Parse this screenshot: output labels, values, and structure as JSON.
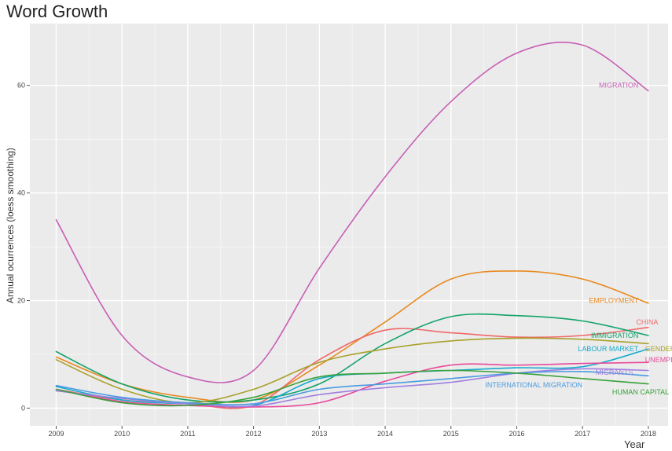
{
  "chart_data": {
    "type": "line",
    "title": "Word Growth",
    "xlabel": "Year",
    "ylabel": "Annual ocurrences (loess smoothing)",
    "x": [
      2009,
      2010,
      2011,
      2012,
      2013,
      2014,
      2015,
      2016,
      2017,
      2018
    ],
    "xlim": [
      2008.6,
      2018.3
    ],
    "ylim": [
      -3.3,
      71.5
    ],
    "yticks": [
      0,
      20,
      40,
      60
    ],
    "grid": true,
    "legend": "none",
    "series": [
      {
        "name": "MIGRATION",
        "color": "#c75fb5",
        "values": [
          35,
          13.5,
          5.8,
          7,
          26,
          43,
          57,
          66,
          67.5,
          59
        ]
      },
      {
        "name": "EMPLOYMENT",
        "color": "#e8891f",
        "values": [
          9.5,
          4.5,
          2,
          1.5,
          8,
          16,
          24,
          25.5,
          24,
          19.5
        ]
      },
      {
        "name": "CHINA",
        "color": "#f0686a",
        "values": [
          3.5,
          1.5,
          0.8,
          0.5,
          9,
          14.5,
          14,
          13.2,
          13.5,
          15
        ]
      },
      {
        "name": "IMMIGRATION",
        "color": "#12a36a",
        "values": [
          10.5,
          4.5,
          1.5,
          1.5,
          4.5,
          12,
          17,
          17.2,
          16.2,
          13.5
        ]
      },
      {
        "name": "LABOUR MARKET",
        "color": "#1aaacd",
        "values": [
          4,
          1.5,
          0.8,
          0.5,
          5.5,
          6.5,
          7,
          7.5,
          7.7,
          11
        ]
      },
      {
        "name": "GENDER",
        "color": "#a8a12a",
        "values": [
          9,
          3.5,
          1,
          3.5,
          8.5,
          11,
          12.5,
          13,
          12.8,
          12
        ]
      },
      {
        "name": "UNEMPLOYMENT",
        "color": "#e84b9b",
        "values": [
          3.5,
          1.2,
          0.5,
          0.2,
          1,
          5,
          8,
          8,
          8.3,
          8.5
        ]
      },
      {
        "name": "MIGRANTS",
        "color": "#a27fe0",
        "values": [
          3.2,
          1.8,
          0.8,
          0.4,
          2.5,
          3.8,
          4.8,
          6.5,
          7.3,
          7
        ]
      },
      {
        "name": "INTERNATIONAL MIGRATION",
        "color": "#4a9be0",
        "values": [
          4.2,
          2,
          1,
          0.8,
          3.5,
          4.5,
          5.5,
          6.5,
          6.8,
          6
        ]
      },
      {
        "name": "HUMAN CAPITAL",
        "color": "#3aa13a",
        "values": [
          3.5,
          1,
          0.5,
          2,
          5.8,
          6.5,
          7,
          6.5,
          5.5,
          4.5
        ]
      }
    ]
  }
}
